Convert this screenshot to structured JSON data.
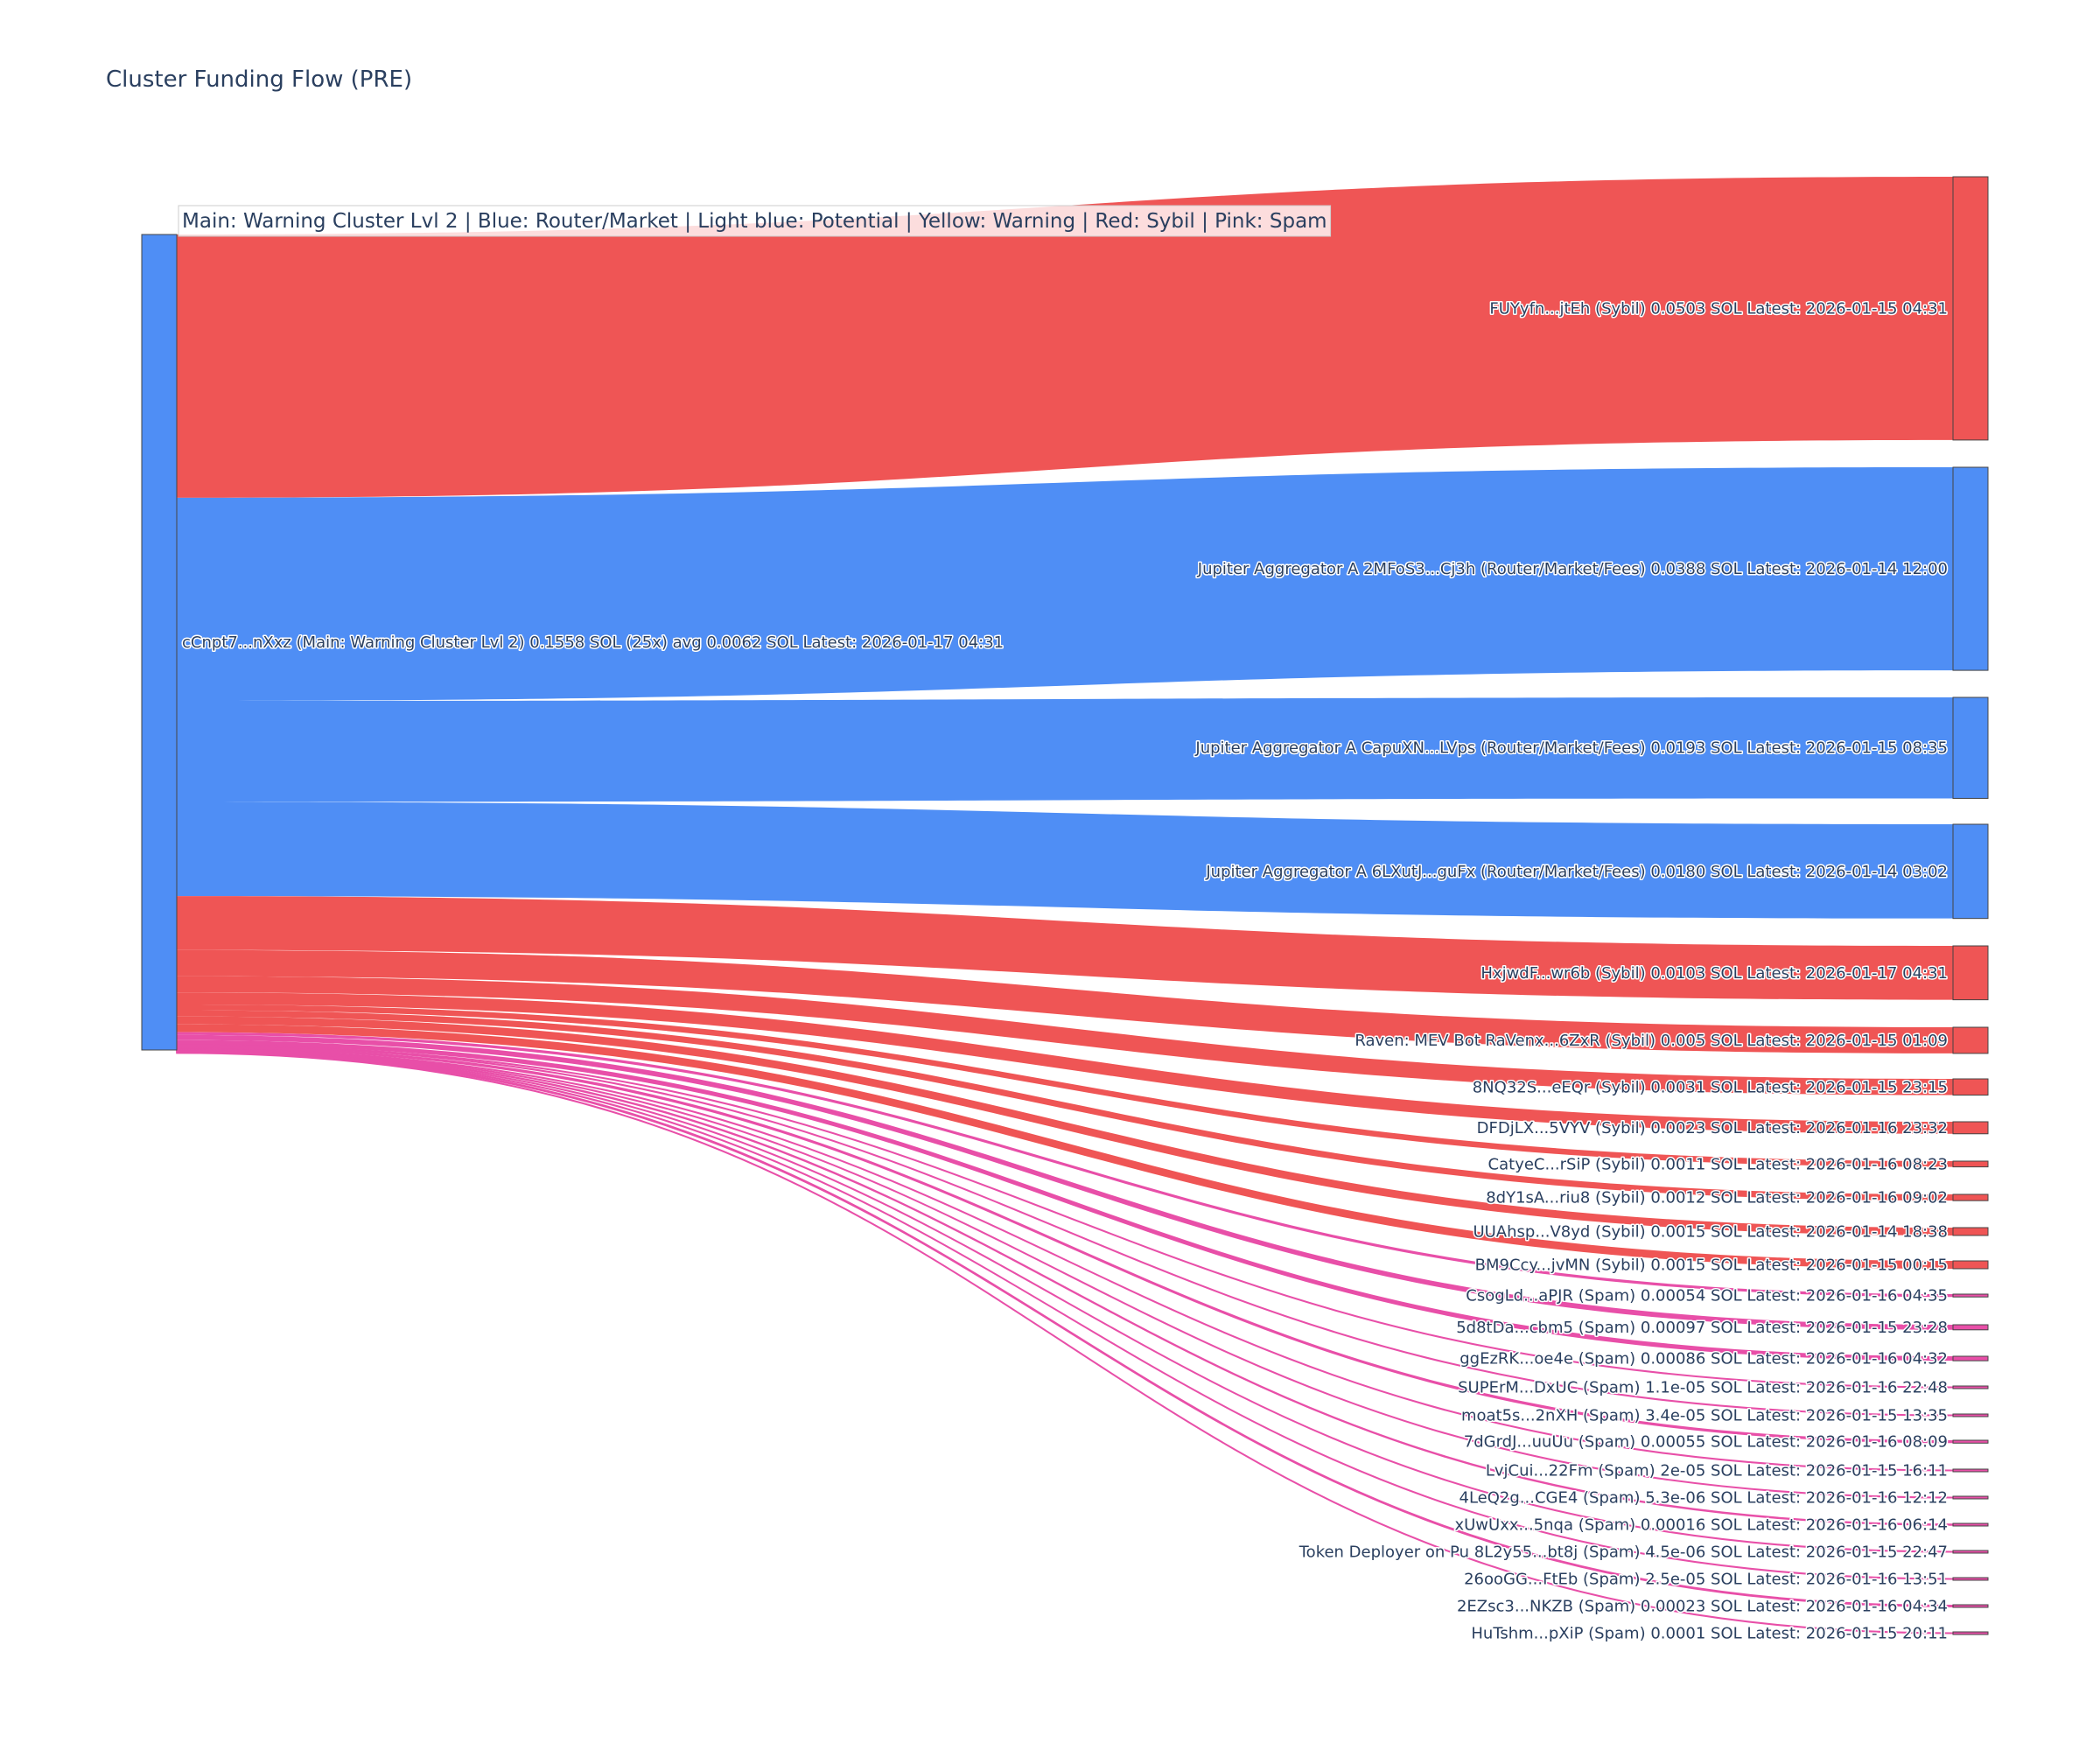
{
  "chart_data": {
    "type": "sankey",
    "title": "Cluster Funding Flow (PRE)",
    "annotation": "Main: Warning Cluster Lvl 2  |  Blue: Router/Market | Light blue: Potential | Yellow: Warning | Red: Sybil | Pink: Spam",
    "colors": {
      "source": "#4f8ef5",
      "Sybil": "#ef5555",
      "Router": "#4f8ef5",
      "Spam": "#e84fa8"
    },
    "source": {
      "label": "cCnpt7...nXxz (Main: Warning Cluster Lvl 2) 0.1558 SOL (25x) avg 0.0062 SOL Latest: 2026-01-17 04:31",
      "value": 0.1558
    },
    "targets": [
      {
        "label": "FUYyfn...jtEh (Sybil) 0.0503 SOL Latest: 2026-01-15 04:31",
        "value": 0.0503,
        "category": "Sybil"
      },
      {
        "label": "Jupiter Aggregator A 2MFoS3...Cj3h (Router/Market/Fees) 0.0388 SOL Latest: 2026-01-14 12:00",
        "value": 0.0388,
        "category": "Router"
      },
      {
        "label": "Jupiter Aggregator A CapuXN...LVps (Router/Market/Fees) 0.0193 SOL Latest: 2026-01-15 08:35",
        "value": 0.0193,
        "category": "Router"
      },
      {
        "label": "Jupiter Aggregator A 6LXutJ...guFx (Router/Market/Fees) 0.0180 SOL Latest: 2026-01-14 03:02",
        "value": 0.018,
        "category": "Router"
      },
      {
        "label": "HxjwdF...wr6b (Sybil) 0.0103 SOL Latest: 2026-01-17 04:31",
        "value": 0.0103,
        "category": "Sybil"
      },
      {
        "label": "Raven: MEV Bot RaVenx...6ZxR (Sybil) 0.005 SOL Latest: 2026-01-15 01:09",
        "value": 0.005,
        "category": "Sybil"
      },
      {
        "label": "8NQ32S...eEQr (Sybil) 0.0031 SOL Latest: 2026-01-15 23:15",
        "value": 0.0031,
        "category": "Sybil"
      },
      {
        "label": "DFDjLX...5VYV (Sybil) 0.0023 SOL Latest: 2026-01-16 23:32",
        "value": 0.0023,
        "category": "Sybil"
      },
      {
        "label": "CatyeC...rSiP (Sybil) 0.0011 SOL Latest: 2026-01-16 08:23",
        "value": 0.0011,
        "category": "Sybil"
      },
      {
        "label": "8dY1sA...riu8 (Sybil) 0.0012 SOL Latest: 2026-01-16 09:02",
        "value": 0.0012,
        "category": "Sybil"
      },
      {
        "label": "UUAhsp...V8yd (Sybil) 0.0015 SOL Latest: 2026-01-14 18:38",
        "value": 0.0015,
        "category": "Sybil"
      },
      {
        "label": "BM9Ccy...jvMN (Sybil) 0.0015 SOL Latest: 2026-01-15 00:15",
        "value": 0.0015,
        "category": "Sybil"
      },
      {
        "label": "CsogLd...aPJR (Spam) 0.00054 SOL Latest: 2026-01-16 04:35",
        "value": 0.00054,
        "category": "Spam"
      },
      {
        "label": "5d8tDa...cbm5 (Spam) 0.00097 SOL Latest: 2026-01-15 23:28",
        "value": 0.00097,
        "category": "Spam"
      },
      {
        "label": "ggEzRK...oe4e (Spam) 0.00086 SOL Latest: 2026-01-16 04:32",
        "value": 0.00086,
        "category": "Spam"
      },
      {
        "label": "SUPErM...DxUC (Spam) 1.1e-05 SOL Latest: 2026-01-16 22:48",
        "value": 1.1e-05,
        "category": "Spam"
      },
      {
        "label": "moat5s...2nXH (Spam) 3.4e-05 SOL Latest: 2026-01-15 13:35",
        "value": 3.4e-05,
        "category": "Spam"
      },
      {
        "label": "7dGrdJ...uuUu (Spam) 0.00055 SOL Latest: 2026-01-16 08:09",
        "value": 0.00055,
        "category": "Spam"
      },
      {
        "label": "LvjCui...22Fm (Spam) 2e-05 SOL Latest: 2026-01-15 16:11",
        "value": 2e-05,
        "category": "Spam"
      },
      {
        "label": "4LeQ2g...CGE4 (Spam) 5.3e-06 SOL Latest: 2026-01-16 12:12",
        "value": 5.3e-06,
        "category": "Spam"
      },
      {
        "label": "xUwUxx...5nqa (Spam) 0.00016 SOL Latest: 2026-01-16 06:14",
        "value": 0.00016,
        "category": "Spam"
      },
      {
        "label": "Token Deployer on Pu 8L2y55...bt8j (Spam) 4.5e-06 SOL Latest: 2026-01-15 22:47",
        "value": 4.5e-06,
        "category": "Spam"
      },
      {
        "label": "26ooGG...FtEb (Spam) 2.5e-05 SOL Latest: 2026-01-16 13:51",
        "value": 2.5e-05,
        "category": "Spam"
      },
      {
        "label": "2EZsc3...NKZB (Spam) 0.00023 SOL Latest: 2026-01-16 04:34",
        "value": 0.00023,
        "category": "Spam"
      },
      {
        "label": "HuTshm...pXiP (Spam) 0.0001 SOL Latest: 2026-01-15 20:11",
        "value": 0.0001,
        "category": "Spam"
      }
    ]
  }
}
